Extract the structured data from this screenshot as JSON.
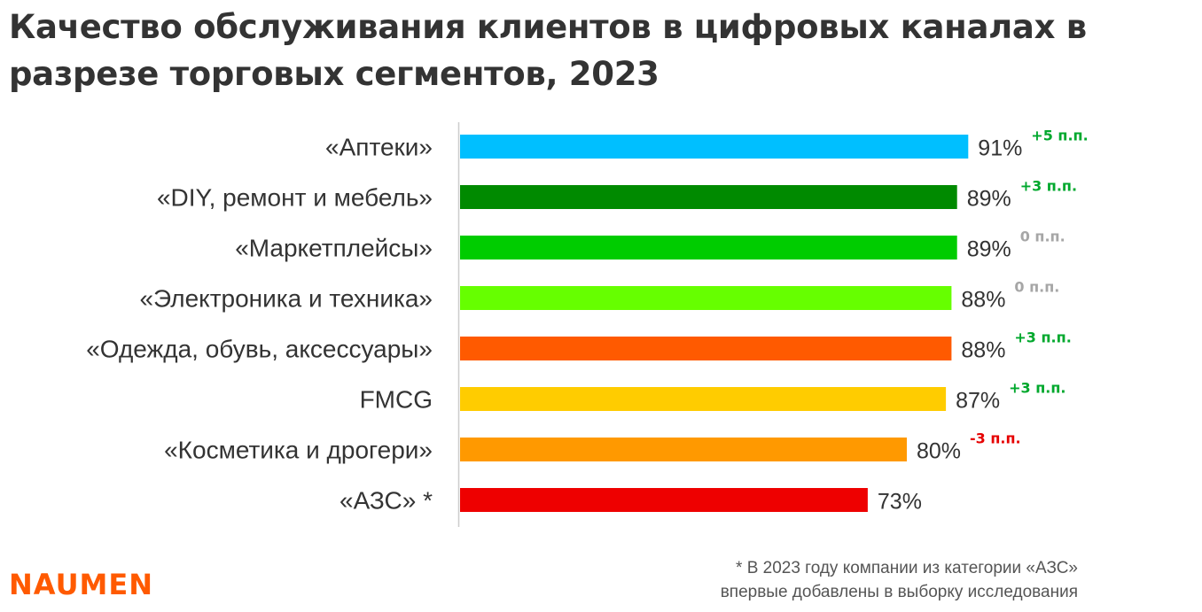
{
  "title": "Качество обслуживания клиентов в цифровых каналах в разрезе торговых сегментов, 2023",
  "logo": "NAUMEN",
  "footnote": [
    "* В 2023 году компании из категории «АЗС»",
    "впервые добавлены в выборку исследования"
  ],
  "chart_data": {
    "type": "bar",
    "orientation": "horizontal",
    "xlim": [
      0,
      100
    ],
    "categories": [
      "«Аптеки»",
      "«DIY, ремонт и мебель»",
      "«Маркетплейсы»",
      "«Электроника и техника»",
      "«Одежда, обувь, аксессуары»",
      "FMCG",
      "«Косметика и дрогери»",
      "«АЗС» *"
    ],
    "values": [
      91,
      89,
      89,
      88,
      88,
      87,
      80,
      73
    ],
    "value_labels": [
      "91%",
      "89%",
      "89%",
      "88%",
      "88%",
      "87%",
      "80%",
      "73%"
    ],
    "changes": [
      "+5 п.п.",
      "+3 п.п.",
      "0 п.п.",
      "0 п.п.",
      "+3 п.п.",
      "+3 п.п.",
      "-3 п.п.",
      ""
    ],
    "bar_colors": [
      "#00bfff",
      "#008a00",
      "#00cc00",
      "#66ff00",
      "#ff5a00",
      "#ffcc00",
      "#ff9900",
      "#ee0000"
    ],
    "change_colors": {
      "positive": "#00a82d",
      "neutral": "#a6a6a6",
      "negative": "#e60000"
    }
  }
}
